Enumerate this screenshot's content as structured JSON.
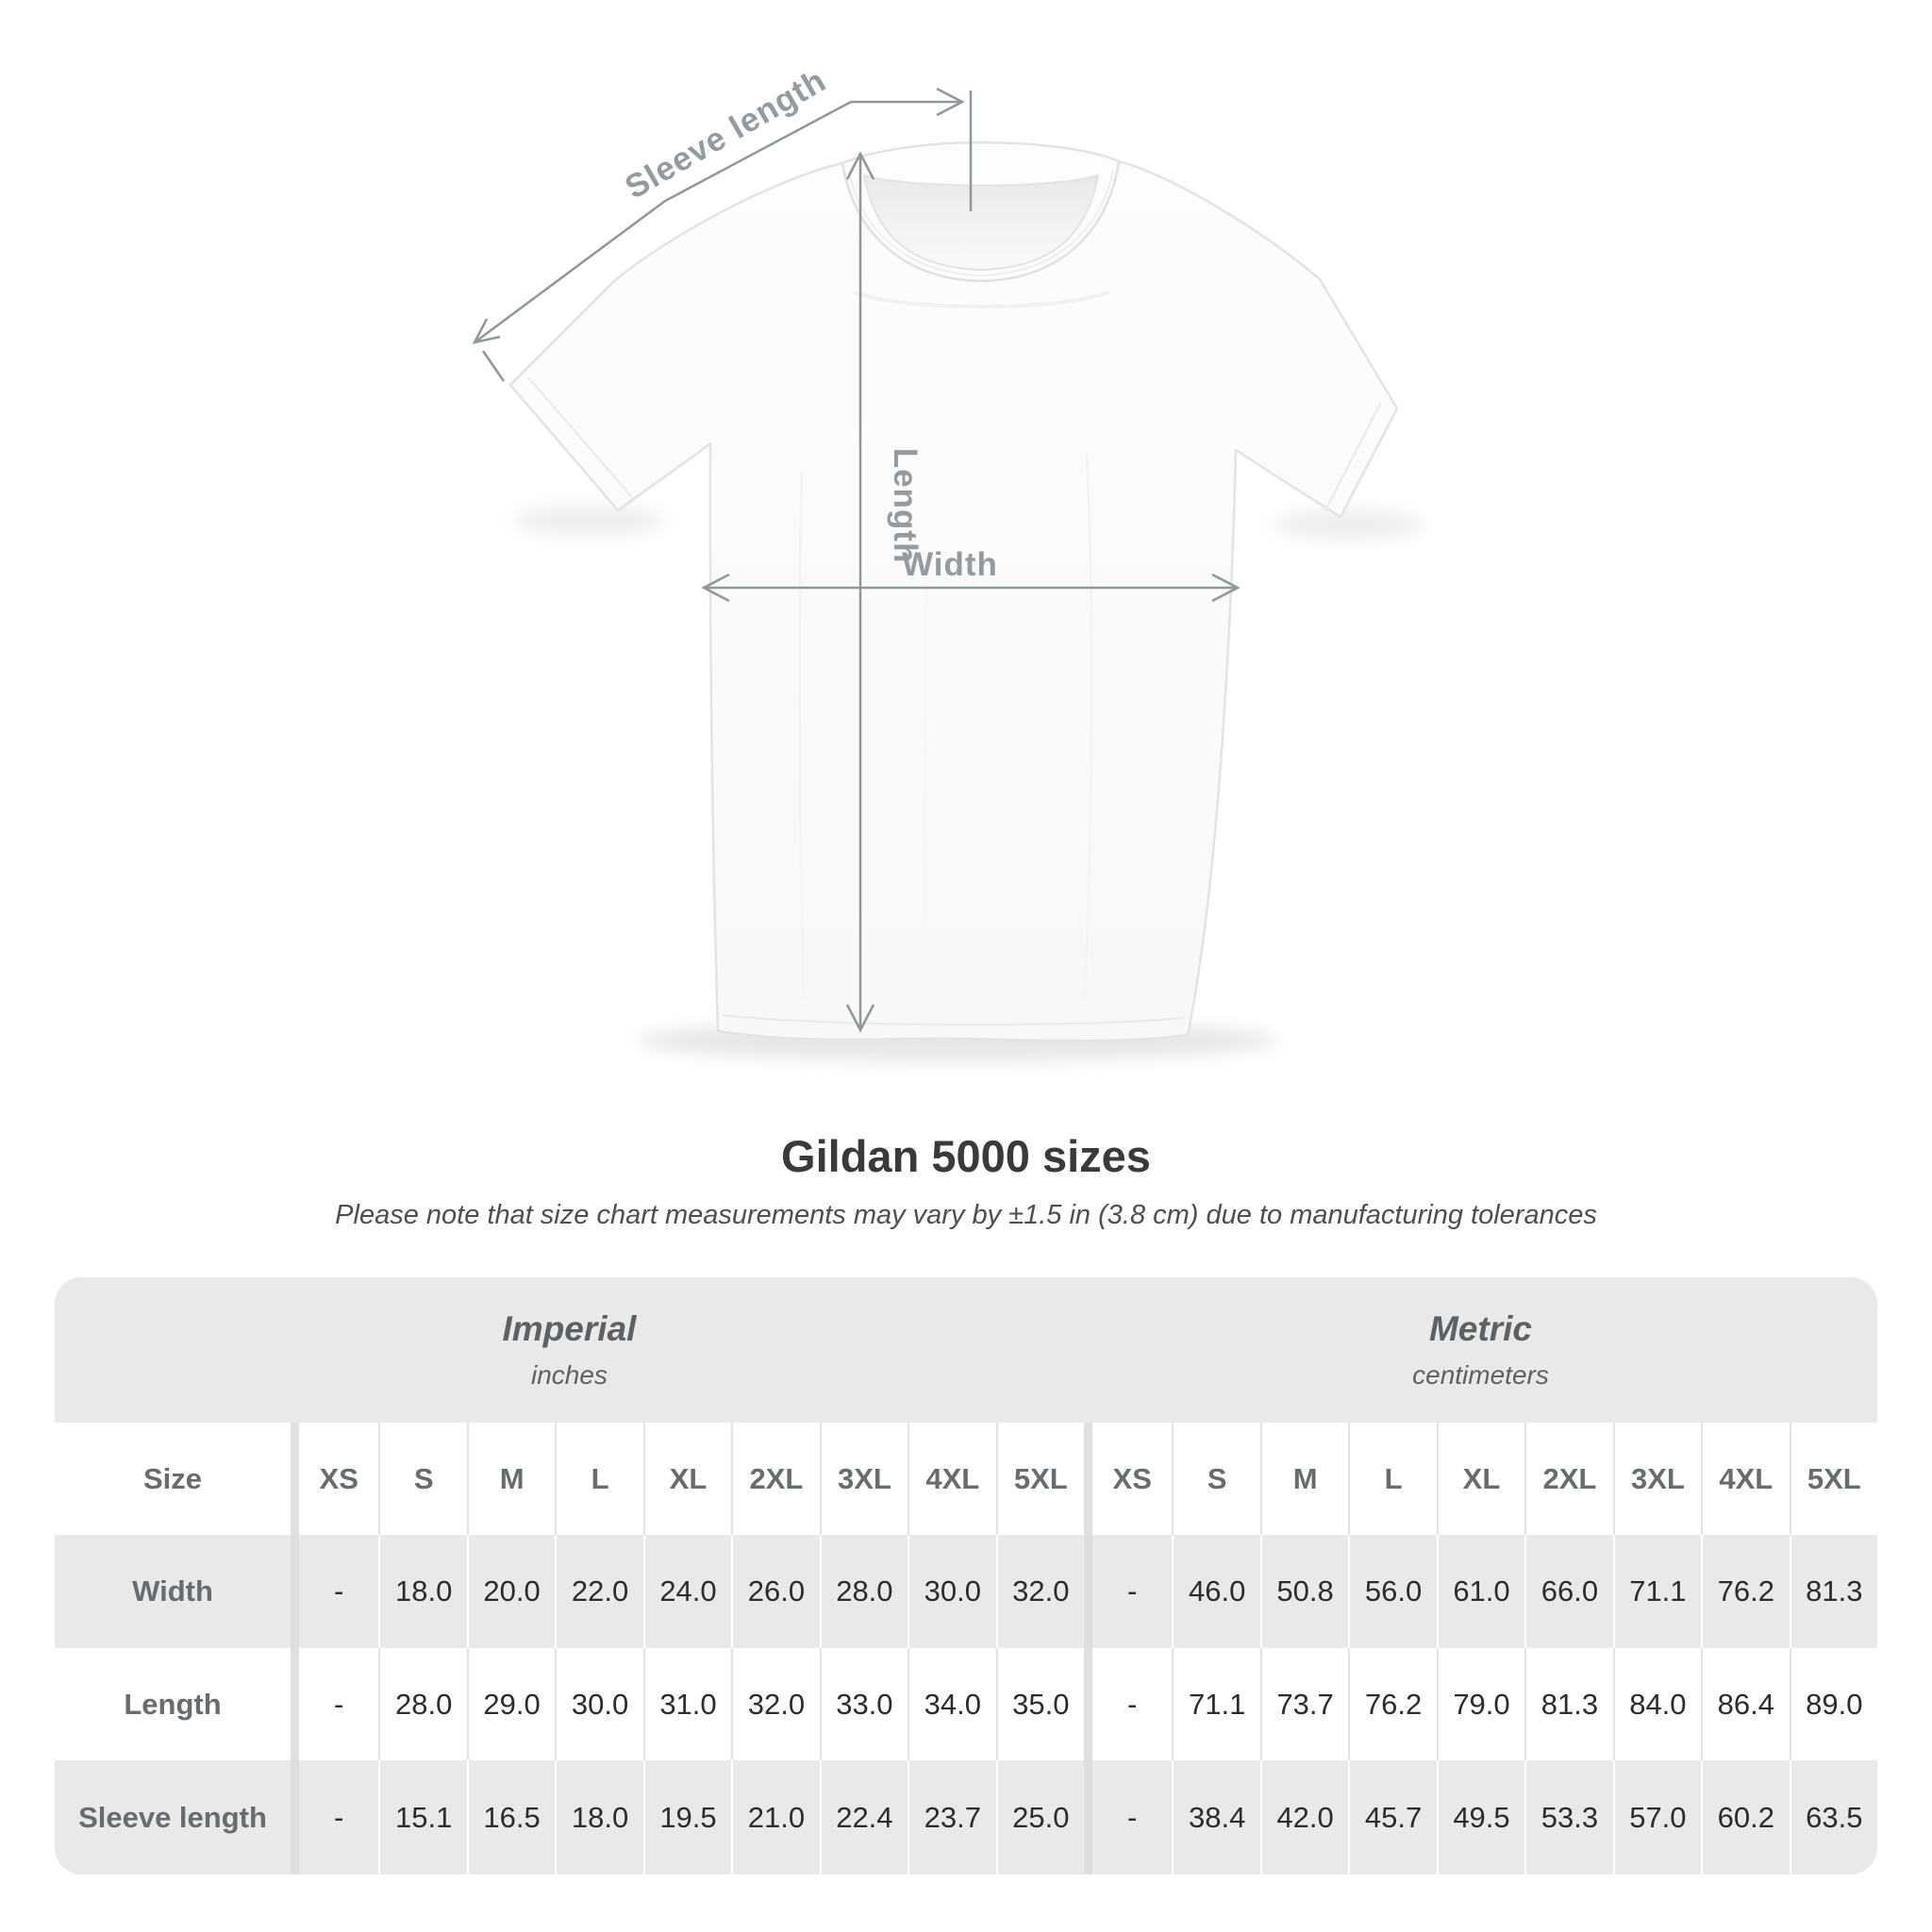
{
  "shirt": {
    "labels": {
      "sleeve": "Sleeve length",
      "length": "Length",
      "width": "Width"
    }
  },
  "title": "Gildan 5000 sizes",
  "note": "Please note that size chart measurements may vary by ±1.5 in (3.8 cm) due to manufacturing tolerances",
  "table": {
    "sections": [
      {
        "name": "Imperial",
        "unit": "inches"
      },
      {
        "name": "Metric",
        "unit": "centimeters"
      }
    ],
    "size_label": "Size",
    "sizes": [
      "XS",
      "S",
      "M",
      "L",
      "XL",
      "2XL",
      "3XL",
      "4XL",
      "5XL"
    ],
    "rows": [
      {
        "label": "Width",
        "imperial": [
          "-",
          "18.0",
          "20.0",
          "22.0",
          "24.0",
          "26.0",
          "28.0",
          "30.0",
          "32.0"
        ],
        "metric": [
          "-",
          "46.0",
          "50.8",
          "56.0",
          "61.0",
          "66.0",
          "71.1",
          "76.2",
          "81.3"
        ]
      },
      {
        "label": "Length",
        "imperial": [
          "-",
          "28.0",
          "29.0",
          "30.0",
          "31.0",
          "32.0",
          "33.0",
          "34.0",
          "35.0"
        ],
        "metric": [
          "-",
          "71.1",
          "73.7",
          "76.2",
          "79.0",
          "81.3",
          "84.0",
          "86.4",
          "89.0"
        ]
      },
      {
        "label": "Sleeve length",
        "imperial": [
          "-",
          "15.1",
          "16.5",
          "18.0",
          "19.5",
          "21.0",
          "22.4",
          "23.7",
          "25.0"
        ],
        "metric": [
          "-",
          "38.4",
          "42.0",
          "45.7",
          "49.5",
          "53.3",
          "57.0",
          "60.2",
          "63.5"
        ]
      }
    ]
  },
  "colors": {
    "annotation": "#8e979c",
    "band_bg": "#e9e9e9",
    "label_text": "#666c6f",
    "value_text": "#2c2c2c"
  }
}
